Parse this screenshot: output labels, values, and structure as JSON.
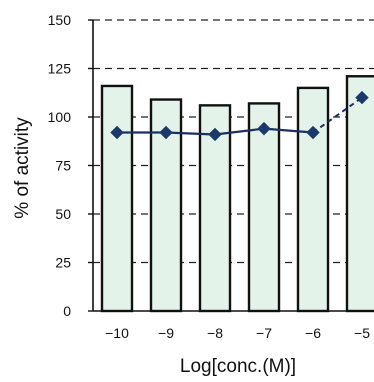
{
  "chart_data": {
    "type": "bar",
    "title": "",
    "xlabel": "Log[conc.(M)]",
    "ylabel": "% of activity",
    "categories": [
      "-10",
      "-9",
      "-8",
      "-7",
      "-6",
      "-5"
    ],
    "series": [
      {
        "kind": "bar",
        "values": [
          116,
          109,
          106,
          107,
          115,
          121
        ]
      },
      {
        "kind": "line",
        "values": [
          92,
          92,
          91,
          94,
          92,
          110
        ]
      }
    ],
    "ylim": [
      0,
      150
    ],
    "yticks": [
      0,
      25,
      50,
      75,
      100,
      125,
      150
    ],
    "grid": "dashed horizontal",
    "colors": {
      "bar_fill": "#e3f3ea",
      "bar_stroke": "#111111",
      "line": "#1b2f63",
      "marker": "#1b3a6b"
    }
  }
}
